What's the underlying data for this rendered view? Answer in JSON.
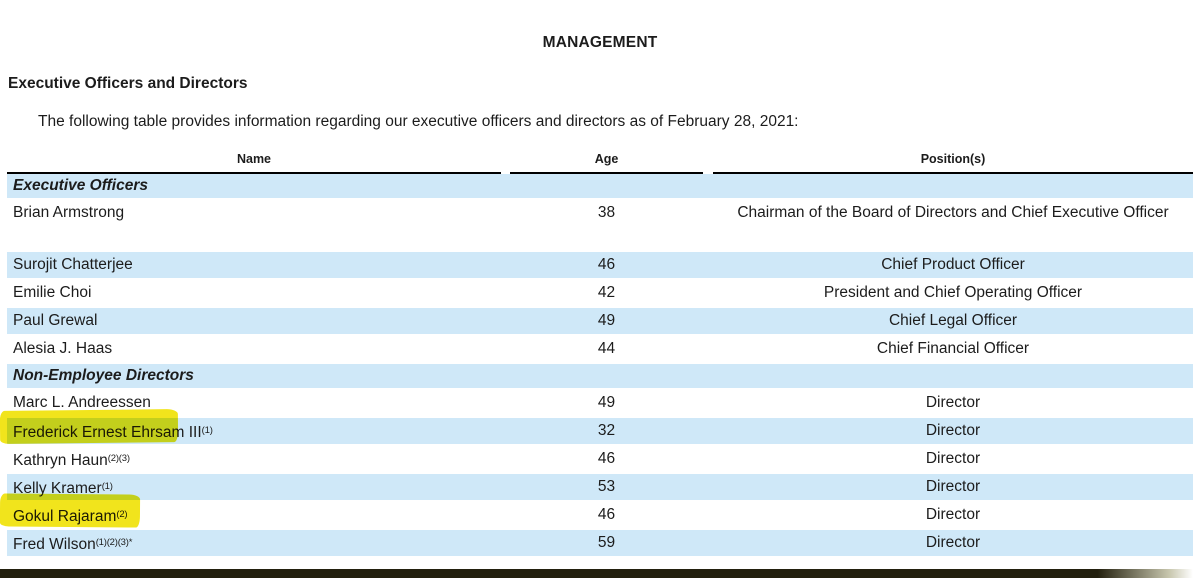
{
  "document": {
    "title": "MANAGEMENT",
    "section_heading": "Executive Officers and Directors",
    "intro_paragraph": "The following table provides information regarding our executive officers and directors as of February 28, 2021:"
  },
  "table": {
    "columns": [
      "Name",
      "Age",
      "Position(s)"
    ],
    "sections": [
      {
        "label": "Executive Officers",
        "rows": [
          {
            "name": "Brian Armstrong",
            "sup": "",
            "age": "38",
            "position": "Chairman of the Board of Directors and Chief Executive Officer",
            "highlighted": false
          },
          {
            "name": "Surojit Chatterjee",
            "sup": "",
            "age": "46",
            "position": "Chief Product Officer",
            "highlighted": false
          },
          {
            "name": "Emilie Choi",
            "sup": "",
            "age": "42",
            "position": "President and Chief Operating Officer",
            "highlighted": false
          },
          {
            "name": "Paul Grewal",
            "sup": "",
            "age": "49",
            "position": "Chief Legal Officer",
            "highlighted": false
          },
          {
            "name": "Alesia J. Haas",
            "sup": "",
            "age": "44",
            "position": "Chief Financial Officer",
            "highlighted": false
          }
        ]
      },
      {
        "label": "Non-Employee Directors",
        "rows": [
          {
            "name": "Marc L. Andreessen",
            "sup": "",
            "age": "49",
            "position": "Director",
            "highlighted": true
          },
          {
            "name": "Frederick Ernest Ehrsam III",
            "sup": "(1)",
            "age": "32",
            "position": "Director",
            "highlighted": false
          },
          {
            "name": "Kathryn Haun",
            "sup": "(2)(3)",
            "age": "46",
            "position": "Director",
            "highlighted": false
          },
          {
            "name": "Kelly Kramer",
            "sup": "(1)",
            "age": "53",
            "position": "Director",
            "highlighted": true
          },
          {
            "name": "Gokul Rajaram",
            "sup": "(2)",
            "age": "46",
            "position": "Director",
            "highlighted": false
          },
          {
            "name": "Fred Wilson",
            "sup": "(1)(2)(3)*",
            "age": "59",
            "position": "Director",
            "highlighted": false
          }
        ]
      }
    ]
  },
  "colors": {
    "row_shade_blue": "#cfe8f8",
    "highlight_yellow": "#f1e41c",
    "header_rule_black": "#000000",
    "bottom_bar_olive": "#23200e",
    "text": "#1c1c1c"
  }
}
